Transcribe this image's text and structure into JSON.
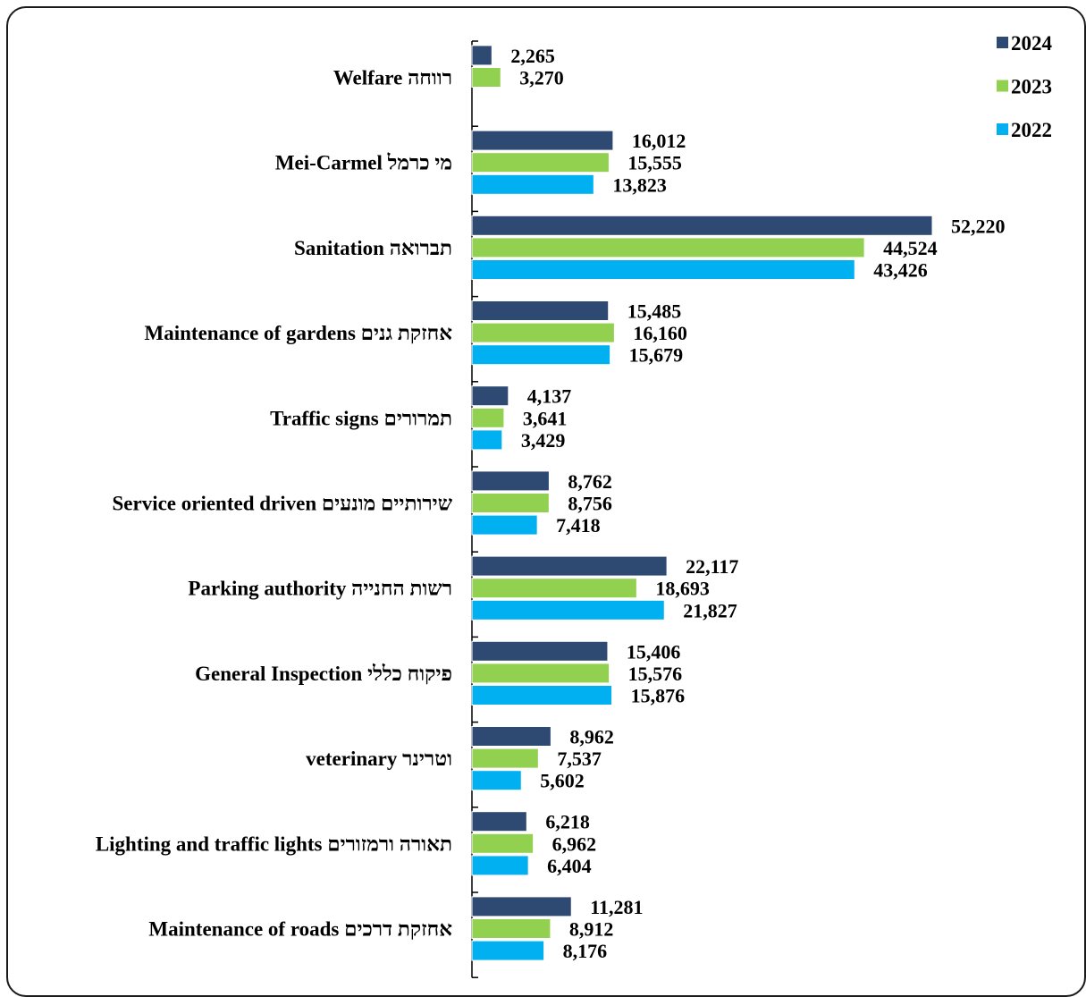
{
  "chart_data": {
    "type": "bar",
    "orientation": "horizontal",
    "title": "",
    "xlabel": "",
    "ylabel": "",
    "legend_position": "top-right",
    "grid": false,
    "categories": [
      "Welfare רווחה",
      "Mei-Carmel מי כרמל",
      "Sanitation תברואה",
      "Maintenance of gardens אחזקת גנים",
      "Traffic signs תמרורים",
      "Service oriented driven שירותיים מונעים",
      "Parking authority רשות החנייה",
      "General Inspection פיקוח כללי",
      "veterinary  וטרינר",
      "Lighting and traffic lights  תאורה ורמזורים",
      "Maintenance of roads    אחזקת דרכים"
    ],
    "series": [
      {
        "name": "2024",
        "color": "#2e4a72",
        "values": [
          2265,
          16012,
          52220,
          15485,
          4137,
          8762,
          22117,
          15406,
          8962,
          6218,
          11281
        ],
        "labels": [
          "2,265",
          "16,012",
          "52,220",
          "15,485",
          "4,137",
          "8,762",
          "22,117",
          "15,406",
          "8,962",
          "6,218",
          "11,281"
        ]
      },
      {
        "name": "2023",
        "color": "#92d050",
        "values": [
          3270,
          15555,
          44524,
          16160,
          3641,
          8756,
          18693,
          15576,
          7537,
          6962,
          8912
        ],
        "labels": [
          "3,270",
          "15,555",
          "44,524",
          "16,160",
          "3,641",
          "8,756",
          "18,693",
          "15,576",
          "7,537",
          "6,962",
          "8,912"
        ]
      },
      {
        "name": "2022",
        "color": "#00b0f0",
        "values": [
          null,
          13823,
          43426,
          15679,
          3429,
          7418,
          21827,
          15876,
          5602,
          6404,
          8176
        ],
        "labels": [
          "",
          "13,823",
          "43,426",
          "15,679",
          "3,429",
          "7,418",
          "21,827",
          "15,876",
          "5,602",
          "6,404",
          "8,176"
        ]
      }
    ]
  }
}
